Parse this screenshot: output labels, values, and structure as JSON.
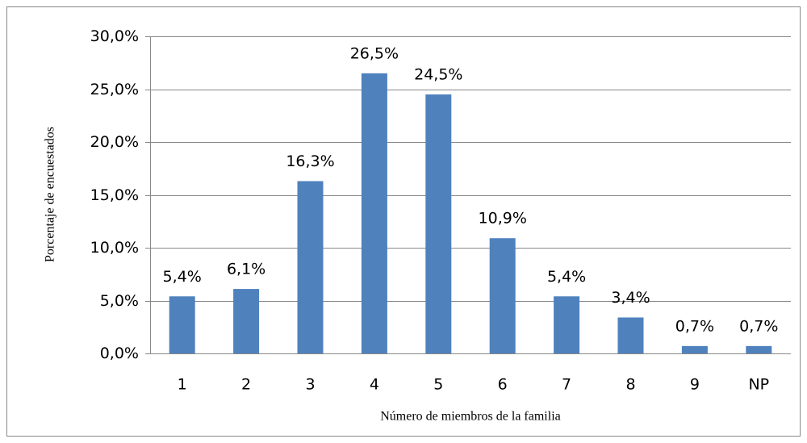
{
  "chart_data": {
    "type": "bar",
    "x_label": "Número de miembros de la familia",
    "y_label": "Porcentaje de encuestados",
    "categories": [
      "1",
      "2",
      "3",
      "4",
      "5",
      "6",
      "7",
      "8",
      "9",
      "NP"
    ],
    "values": [
      5.4,
      6.1,
      16.3,
      26.5,
      24.5,
      10.9,
      5.4,
      3.4,
      0.7,
      0.7
    ],
    "value_labels": [
      "5,4%",
      "6,1%",
      "16,3%",
      "26,5%",
      "24,5%",
      "10,9%",
      "5,4%",
      "3,4%",
      "0,7%",
      "0,7%"
    ],
    "color": "#4f81bd",
    "ylim": [
      0,
      30
    ],
    "yticks": [
      {
        "value": 0,
        "label": "0,0%"
      },
      {
        "value": 5,
        "label": "5,0%"
      },
      {
        "value": 10,
        "label": "10,0%"
      },
      {
        "value": 15,
        "label": "15,0%"
      },
      {
        "value": 20,
        "label": "20,0%"
      },
      {
        "value": 25,
        "label": "25,0%"
      },
      {
        "value": 30,
        "label": "30,0%"
      }
    ],
    "grid": true
  }
}
